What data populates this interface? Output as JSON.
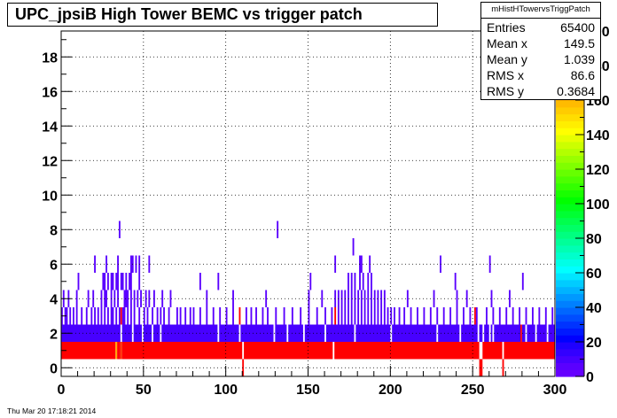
{
  "chart_data": {
    "type": "heatmap",
    "title": "UPC_jpsiB High Tower BEMC vs trigger patch",
    "xlabel": "",
    "ylabel": "",
    "xlim": [
      0,
      300
    ],
    "ylim": [
      -0.5,
      19.5
    ],
    "x_ticks": [
      0,
      50,
      100,
      150,
      200,
      250,
      300
    ],
    "y_ticks": [
      0,
      2,
      4,
      6,
      8,
      10,
      12,
      14,
      16,
      18
    ],
    "grid": true,
    "z_palette": "rainbow",
    "zlim": [
      0,
      200
    ],
    "z_ticks": [
      0,
      20,
      40,
      60,
      80,
      100,
      120,
      140,
      160,
      180,
      200
    ],
    "statistics": {
      "name": "mHistHTowervsTriggPatch",
      "Entries": "65400",
      "Mean x": "149.5",
      "Mean y": "1.039",
      "RMS x": "86.6",
      "RMS y": "0.3684"
    },
    "bands": [
      {
        "y": 0,
        "default_count": 0,
        "exceptions": {
          "110": 200,
          "254": 200,
          "255": 200,
          "268": 200
        }
      },
      {
        "y": 1,
        "default_count": 200,
        "exceptions": {
          "33": 160,
          "36": 180,
          "110": 0,
          "165": 0,
          "254": 0,
          "255": 0,
          "268": 0
        }
      },
      {
        "y": 2,
        "default_count": 10,
        "exceptions": {
          "36": 0,
          "43": 0,
          "49": 0,
          "55": 0,
          "60": 0,
          "95": 0,
          "108": 0,
          "129": 0,
          "137": 0,
          "147": 0,
          "160": 0,
          "178": 0,
          "200": 0,
          "228": 0,
          "242": 0,
          "253": 0,
          "256": 0,
          "260": 0,
          "262": 0,
          "279": 200,
          "282": 0,
          "288": 0,
          "295": 0
        }
      },
      {
        "y": 3,
        "fill_from": [
          0,
          2,
          3,
          5,
          7,
          9,
          12,
          15,
          18,
          20,
          22,
          24,
          26,
          28,
          30,
          31,
          33,
          35,
          37,
          38,
          40,
          42,
          44,
          47,
          50,
          52,
          55,
          58,
          60,
          62,
          65,
          70,
          72,
          75,
          78,
          80,
          84,
          88,
          92,
          96,
          100,
          104,
          108,
          112,
          115,
          118,
          122,
          125,
          130,
          135,
          140,
          145,
          150,
          155,
          160,
          164,
          168,
          170,
          172,
          174,
          176,
          178,
          180,
          182,
          184,
          186,
          188,
          190,
          192,
          194,
          196,
          198,
          200,
          202,
          205,
          208,
          212,
          216,
          220,
          224,
          228,
          232,
          236,
          240,
          244,
          248,
          252,
          258,
          262,
          266,
          270,
          274,
          278,
          282,
          286,
          290,
          294,
          298
        ],
        "count": 5,
        "exceptions": {
          "36": 200,
          "108": 200,
          "166": 200,
          "251": 200
        }
      },
      {
        "y": 4,
        "fill_from": [
          1,
          4,
          9,
          16,
          19,
          24,
          26,
          27,
          30,
          32,
          34,
          38,
          39,
          40,
          42,
          44,
          46,
          48,
          51,
          53,
          56,
          61,
          66,
          88,
          104,
          124,
          150,
          158,
          166,
          168,
          170,
          172,
          174,
          176,
          178,
          180,
          182,
          184,
          186,
          188,
          190,
          192,
          194,
          196,
          210,
          226,
          240,
          246,
          261,
          272
        ],
        "count": 5
      },
      {
        "y": 5,
        "fill_from": [
          10,
          25,
          26,
          28,
          30,
          31,
          33,
          34,
          36,
          37,
          39,
          41,
          42,
          47,
          84,
          95,
          151,
          174,
          176,
          178,
          181,
          183,
          186,
          188,
          239,
          280
        ],
        "count": 5
      },
      {
        "y": 6,
        "fill_from": [
          20,
          27,
          34,
          42,
          43,
          45,
          47,
          53,
          166,
          181,
          182,
          187,
          230,
          260
        ],
        "count": 5
      },
      {
        "y": 7,
        "fill_from": [
          177
        ],
        "count": 5
      },
      {
        "y": 8,
        "fill_from": [
          35,
          131
        ],
        "count": 5
      }
    ]
  },
  "date_stamp": "Thu Mar 20 17:18:21 2014"
}
